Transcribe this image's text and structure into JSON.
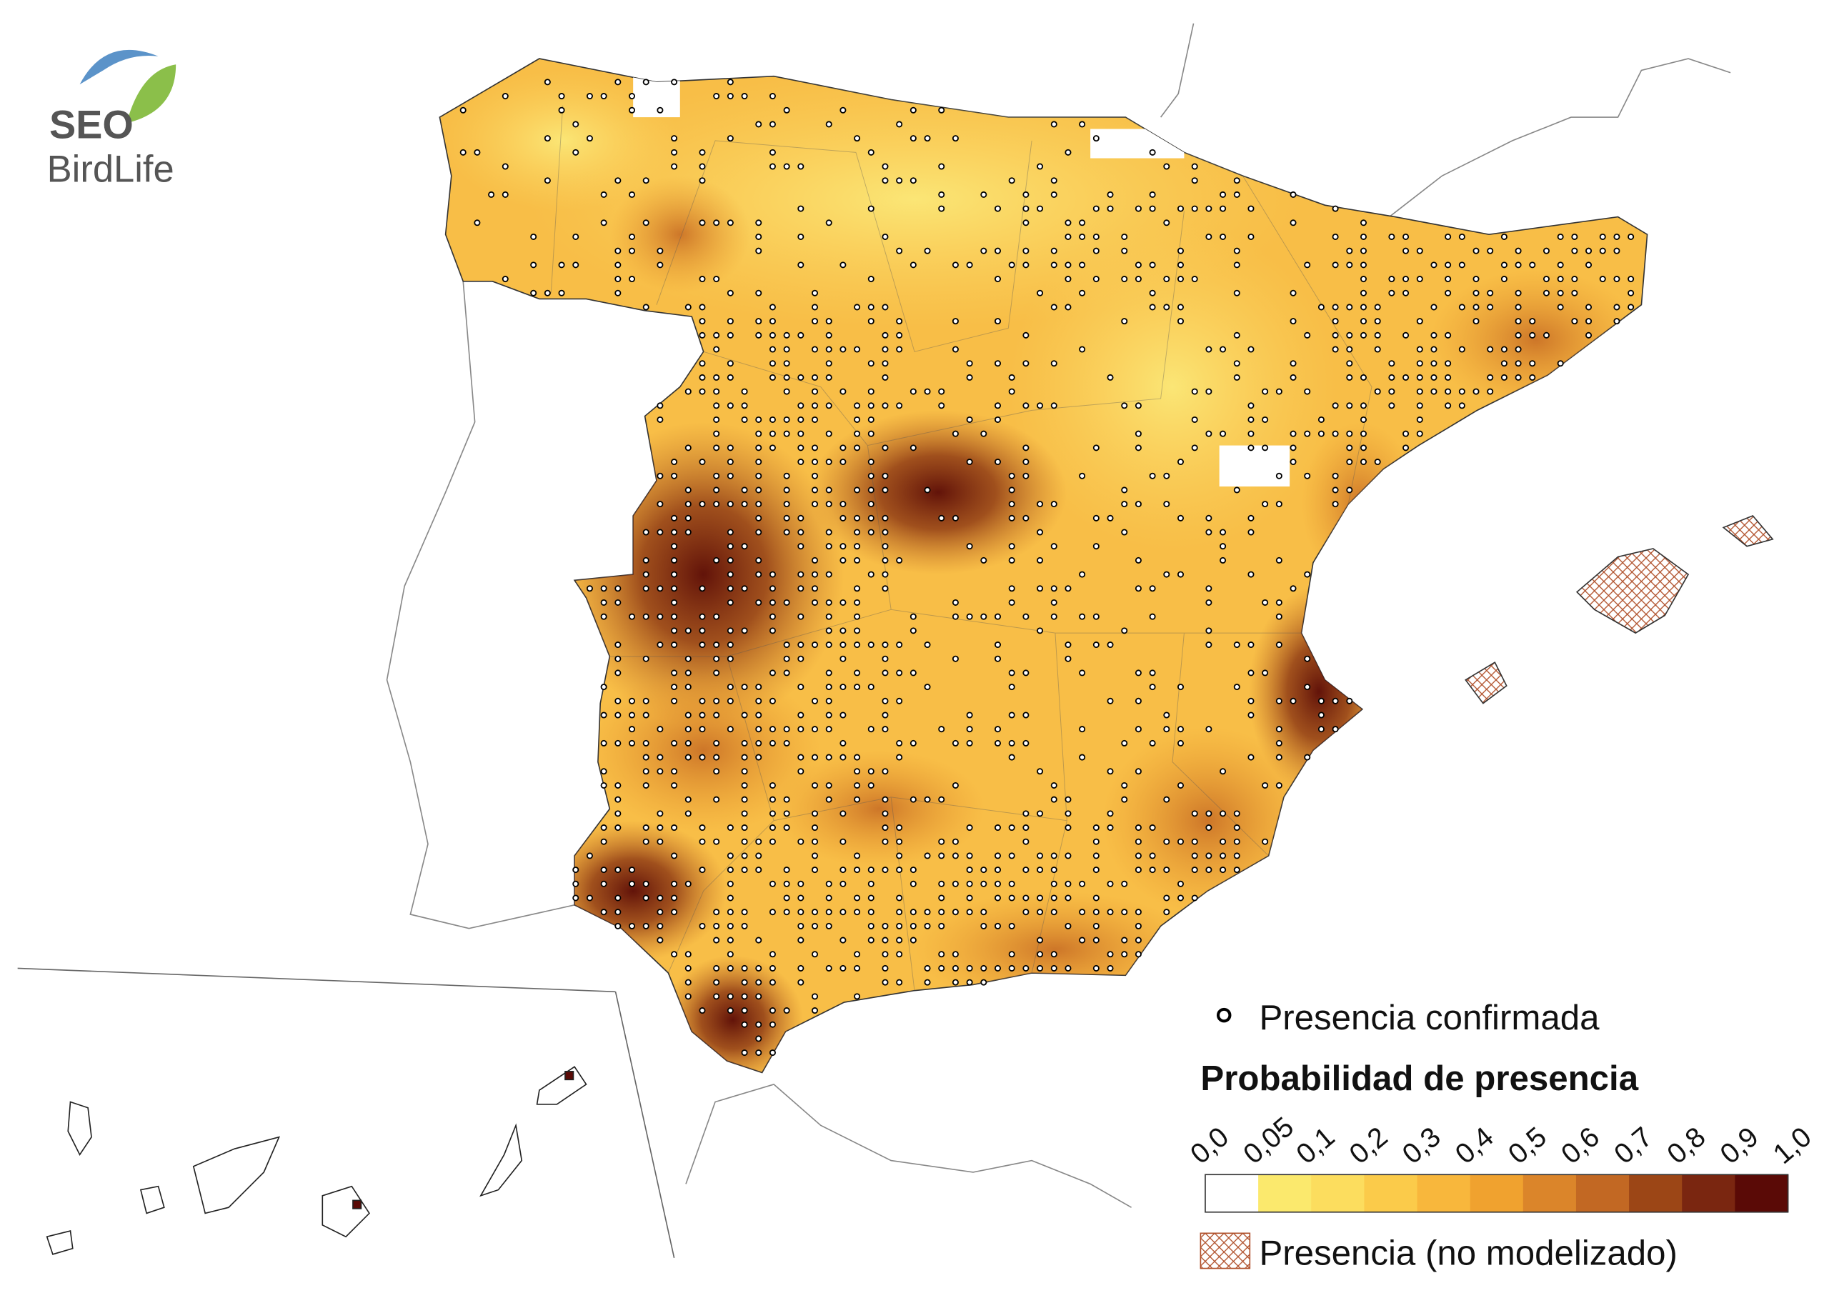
{
  "logo": {
    "line1": "SEO",
    "line2": "BirdLife"
  },
  "legend": {
    "presence_confirmed": "Presencia confirmada",
    "probability_title": "Probabilidad de presencia",
    "scale_labels": [
      "0,0",
      "0,05",
      "0,1",
      "0,2",
      "0,3",
      "0,4",
      "0,5",
      "0,6",
      "0,7",
      "0,8",
      "0,9",
      "1,0"
    ],
    "scale_colors": [
      "#ffffff",
      "#fbe96d",
      "#fcdd5e",
      "#fbcb4a",
      "#f8b73c",
      "#f0a22f",
      "#db852a",
      "#c26823",
      "#9c4616",
      "#7a2610",
      "#5a0a06"
    ],
    "not_modelled": "Presencia (no modelizado)"
  }
}
